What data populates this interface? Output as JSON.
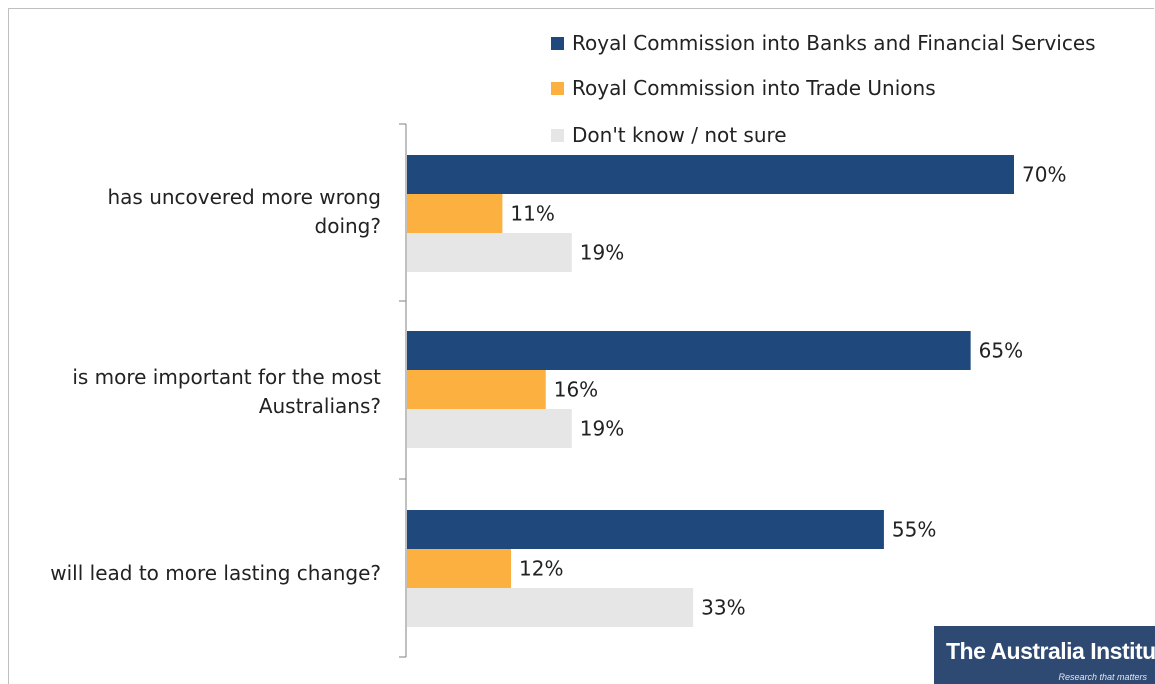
{
  "chart_data": {
    "type": "bar",
    "orientation": "horizontal",
    "categories": [
      "has uncovered more wrong doing?",
      "is more important for the most Australians?",
      "will lead to more lasting change?"
    ],
    "series": [
      {
        "name": "Royal Commission into Banks and Financial Services",
        "values": [
          70,
          65,
          55
        ],
        "color": "#1f497d"
      },
      {
        "name": "Royal Commission into Trade Unions",
        "values": [
          11,
          16,
          12
        ],
        "color": "#fbb040"
      },
      {
        "name": "Don't know / not sure",
        "values": [
          19,
          19,
          33
        ],
        "color": "#e6e6e6"
      }
    ],
    "value_suffix": "%",
    "xlim": [
      0,
      70
    ],
    "grid": false,
    "legend_position": "top-right"
  },
  "logo": {
    "name": "The Australia Institute",
    "tagline": "Research that matters"
  }
}
